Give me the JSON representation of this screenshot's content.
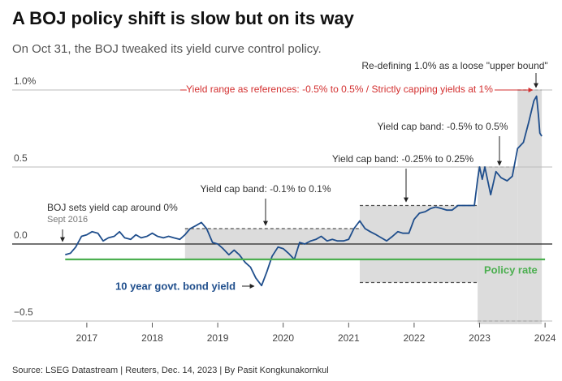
{
  "chart_data": {
    "type": "line",
    "title": "A BOJ policy shift is slow but on its way",
    "subtitle": "On Oct 31, the BOJ tweaked its yield curve control policy.",
    "source": "Source: LSEG Datastream | Reuters, Dec. 14, 2023 | By Pasit Kongkunakornkul",
    "xlim": [
      2015.86,
      2024.11
    ],
    "xticks": [
      2017,
      2018,
      2019,
      2020,
      2021,
      2022,
      2023,
      2024
    ],
    "ylim": [
      -0.5,
      1.0
    ],
    "yticks": [
      {
        "value": 1.0,
        "label": "1.0%"
      },
      0.5,
      {
        "value": 0,
        "label": "0.0"
      },
      {
        "value": -0.5,
        "label": "−0.5"
      }
    ],
    "grid": true,
    "series": [
      {
        "name": "10 year govt. bond yield",
        "color": "#1f4e8c",
        "x": [
          2016.67,
          2016.75,
          2016.83,
          2016.92,
          2017.0,
          2017.08,
          2017.17,
          2017.25,
          2017.33,
          2017.42,
          2017.5,
          2017.58,
          2017.67,
          2017.75,
          2017.83,
          2017.92,
          2018.0,
          2018.08,
          2018.17,
          2018.25,
          2018.33,
          2018.42,
          2018.5,
          2018.58,
          2018.67,
          2018.75,
          2018.83,
          2018.92,
          2019.0,
          2019.08,
          2019.17,
          2019.25,
          2019.33,
          2019.42,
          2019.5,
          2019.58,
          2019.67,
          2019.75,
          2019.83,
          2019.92,
          2020.0,
          2020.08,
          2020.17,
          2020.25,
          2020.33,
          2020.42,
          2020.5,
          2020.58,
          2020.67,
          2020.75,
          2020.83,
          2020.92,
          2021.0,
          2021.08,
          2021.17,
          2021.25,
          2021.33,
          2021.42,
          2021.5,
          2021.58,
          2021.67,
          2021.75,
          2021.83,
          2021.92,
          2022.0,
          2022.08,
          2022.17,
          2022.25,
          2022.33,
          2022.42,
          2022.5,
          2022.58,
          2022.67,
          2022.75,
          2022.83,
          2022.92,
          2022.97,
          2023.0,
          2023.04,
          2023.08,
          2023.17,
          2023.25,
          2023.33,
          2023.42,
          2023.5,
          2023.58,
          2023.67,
          2023.75,
          2023.83,
          2023.87,
          2023.9,
          2023.92,
          2023.95
        ],
        "values": [
          -0.07,
          -0.06,
          -0.02,
          0.05,
          0.06,
          0.08,
          0.07,
          0.02,
          0.04,
          0.05,
          0.08,
          0.04,
          0.03,
          0.06,
          0.04,
          0.05,
          0.07,
          0.05,
          0.04,
          0.05,
          0.04,
          0.03,
          0.06,
          0.1,
          0.12,
          0.14,
          0.1,
          0.01,
          0.0,
          -0.03,
          -0.07,
          -0.04,
          -0.07,
          -0.12,
          -0.15,
          -0.22,
          -0.27,
          -0.18,
          -0.08,
          -0.02,
          -0.03,
          -0.06,
          -0.1,
          0.01,
          0.0,
          0.02,
          0.03,
          0.05,
          0.02,
          0.03,
          0.02,
          0.02,
          0.03,
          0.1,
          0.15,
          0.1,
          0.08,
          0.06,
          0.04,
          0.02,
          0.05,
          0.08,
          0.07,
          0.07,
          0.16,
          0.2,
          0.21,
          0.23,
          0.24,
          0.23,
          0.22,
          0.22,
          0.25,
          0.25,
          0.25,
          0.25,
          0.42,
          0.5,
          0.42,
          0.5,
          0.32,
          0.47,
          0.43,
          0.41,
          0.44,
          0.62,
          0.66,
          0.79,
          0.93,
          0.96,
          0.83,
          0.72,
          0.7
        ]
      },
      {
        "name": "Policy rate",
        "color": "#4caf50",
        "x": [
          2016.67,
          2024.0
        ],
        "values": [
          -0.1,
          -0.1
        ]
      }
    ],
    "bands": [
      {
        "x": [
          2018.5,
          2021.17
        ],
        "y": [
          -0.1,
          0.1
        ]
      },
      {
        "x": [
          2021.17,
          2022.97
        ],
        "y": [
          -0.25,
          0.25
        ]
      },
      {
        "x": [
          2022.97,
          2023.58
        ],
        "y": [
          -0.5,
          0.5
        ]
      },
      {
        "x": [
          2023.58,
          2023.95
        ],
        "y": [
          -0.5,
          1.0
        ]
      }
    ],
    "annotations": [
      "Re-defining 1.0% as a loose \"upper bound\"",
      "Yield range as references: -0.5% to 0.5% / Strictly capping yields at 1%",
      "Yield cap band: -0.5% to 0.5%",
      "Yield cap band: -0.25% to 0.25%",
      "Yield cap band: -0.1% to 0.1%",
      "BOJ sets yield cap around 0%",
      "Sept 2016"
    ]
  }
}
